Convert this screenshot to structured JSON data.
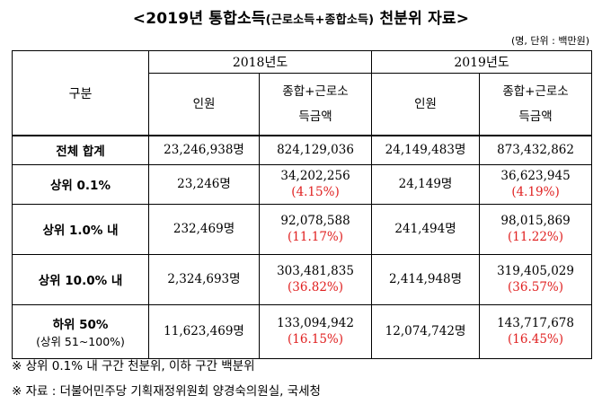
{
  "title": {
    "main_prefix": "<2019년 통합소득",
    "paren": "(근로소득+종합소득)",
    "main_suffix": " 천분위 자료>"
  },
  "unit": "(명, 단위 : 백만원)",
  "table": {
    "corner": "구분",
    "years": [
      "2018년도",
      "2019년도"
    ],
    "subheaders": {
      "people": "인원",
      "amount_line1": "종합+근로소",
      "amount_line2": "득금액"
    },
    "rows": [
      {
        "label": "전체 합계",
        "sub": "",
        "p2018": "23,246,938명",
        "a2018": "824,129,036",
        "r2018": "",
        "p2019": "24,149,483명",
        "a2019": "873,432,862",
        "r2019": ""
      },
      {
        "label": "상위 0.1%",
        "sub": "",
        "p2018": "23,246명",
        "a2018": "34,202,256",
        "r2018": "(4.15%)",
        "p2019": "24,149명",
        "a2019": "36,623,945",
        "r2019": "(4.19%)"
      },
      {
        "label": "상위 1.0% 내",
        "sub": "",
        "p2018": "232,469명",
        "a2018": "92,078,588",
        "r2018": "(11.17%)",
        "p2019": "241,494명",
        "a2019": "98,015,869",
        "r2019": "(11.22%)"
      },
      {
        "label": "상위 10.0% 내",
        "sub": "",
        "p2018": "2,324,693명",
        "a2018": "303,481,835",
        "r2018": "(36.82%)",
        "p2019": "2,414,948명",
        "a2019": "319,405,029",
        "r2019": "(36.57%)"
      },
      {
        "label": "하위 50%",
        "sub": "(상위 51~100%)",
        "p2018": "11,623,469명",
        "a2018": "133,094,942",
        "r2018": "(16.15%)",
        "p2019": "12,074,742명",
        "a2019": "143,717,678",
        "r2019": "(16.45%)"
      }
    ]
  },
  "notes": [
    "※ 상위 0.1% 내 구간 천분위, 이하 구간 백분위",
    "※ 자료 : 더불어민주당 기획재정위원회 양경숙의원실, 국세청"
  ]
}
